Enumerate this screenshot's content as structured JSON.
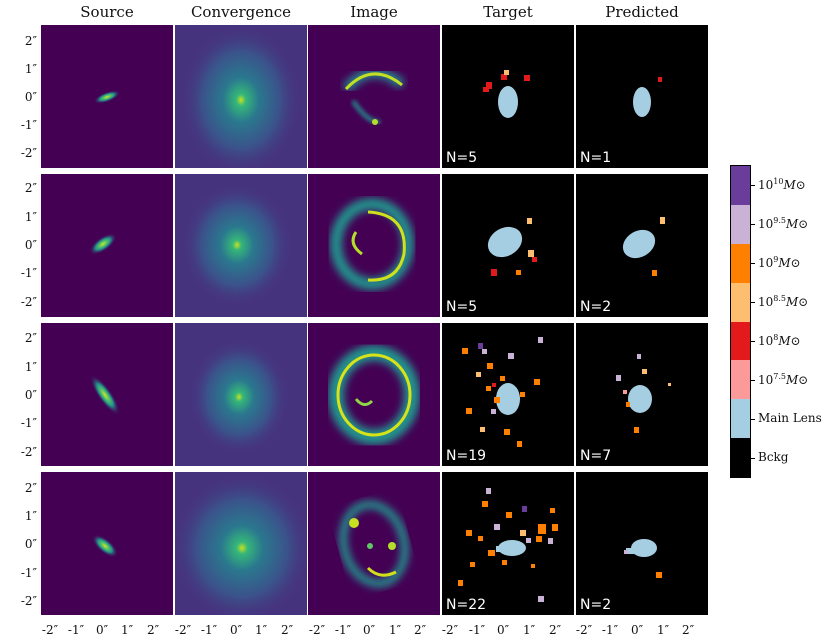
{
  "columns": [
    "Source",
    "Convergence",
    "Image",
    "Target",
    "Predicted"
  ],
  "rows": [
    {
      "target_n": "N=5",
      "pred_n": "N=1"
    },
    {
      "target_n": "N=5",
      "pred_n": "N=2"
    },
    {
      "target_n": "N=19",
      "pred_n": "N=7"
    },
    {
      "target_n": "N=22",
      "pred_n": "N=2"
    }
  ],
  "y_ticks": [
    "2″",
    "1″",
    "0″",
    "-1″",
    "-2″"
  ],
  "x_ticks": [
    "-2″",
    "-1″",
    "0″",
    "1″",
    "2″"
  ],
  "colorbar": {
    "labels": [
      {
        "base": "10",
        "exp": "10",
        "unit": "M⊙"
      },
      {
        "base": "10",
        "exp": "9.5",
        "unit": "M⊙"
      },
      {
        "base": "10",
        "exp": "9",
        "unit": "M⊙"
      },
      {
        "base": "10",
        "exp": "8.5",
        "unit": "M⊙"
      },
      {
        "base": "10",
        "exp": "8",
        "unit": "M⊙"
      },
      {
        "base": "10",
        "exp": "7.5",
        "unit": "M⊙"
      },
      {
        "text": "Main Lens"
      },
      {
        "text": "Bckg"
      }
    ],
    "colors": [
      "#6a3d9a",
      "#cab2d6",
      "#ff7f00",
      "#fdbf6f",
      "#e31a1c",
      "#fb9a99",
      "#a6cee3",
      "#000000"
    ]
  },
  "colors": {
    "background_viridis": "#440154",
    "source_glow": "#21918c",
    "arc_yellow": "#dde318",
    "main_lens": "#a6cee3"
  }
}
